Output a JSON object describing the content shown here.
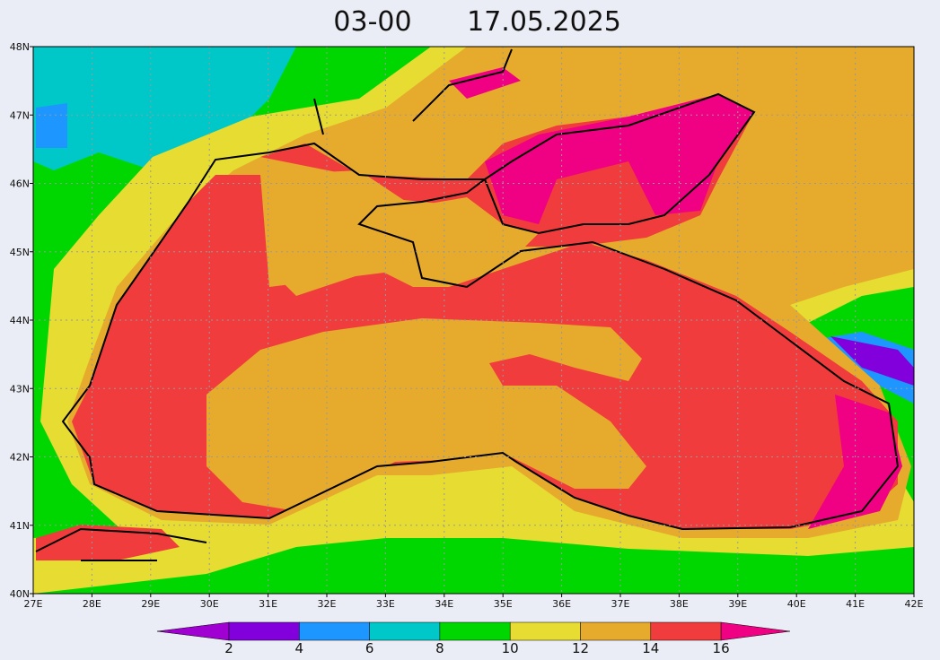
{
  "title": {
    "time": "03-00",
    "date": "17.05.2025"
  },
  "map": {
    "lat_labels": [
      "48N",
      "47N",
      "46N",
      "45N",
      "44N",
      "43N",
      "42N",
      "41N",
      "40N"
    ],
    "lon_labels": [
      "27E",
      "28E",
      "29E",
      "30E",
      "31E",
      "32E",
      "33E",
      "34E",
      "35E",
      "36E",
      "37E",
      "38E",
      "39E",
      "40E",
      "41E",
      "42E"
    ]
  },
  "colorbar": {
    "labels": [
      2,
      4,
      6,
      8,
      10,
      12,
      14,
      16
    ],
    "colors": [
      "#a000d2",
      "#8200dc",
      "#1e96ff",
      "#00c8c8",
      "#00d700",
      "#e6dc32",
      "#e6aa2d",
      "#f03c3c",
      "#f00082"
    ]
  }
}
